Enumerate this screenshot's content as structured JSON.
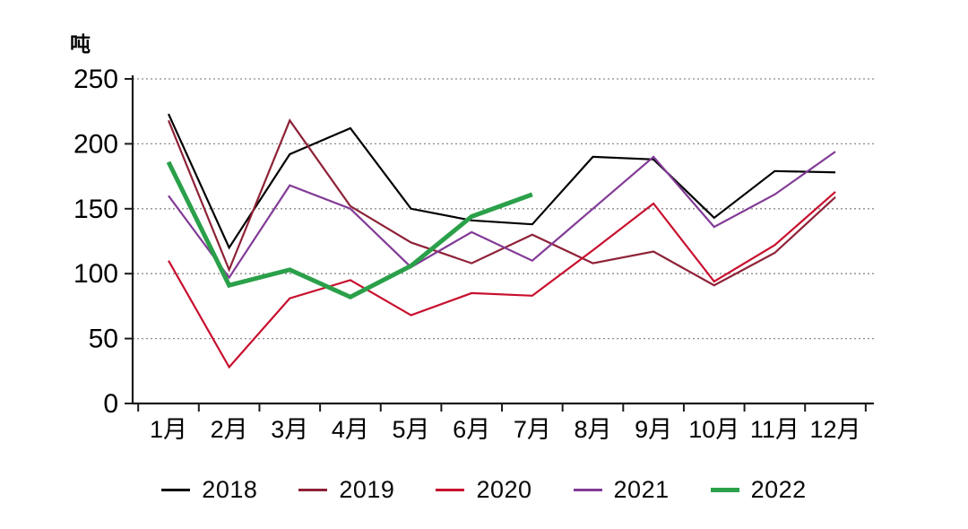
{
  "chart_data": {
    "type": "line",
    "title": "",
    "unit_label": "吨",
    "xlabel": "",
    "ylabel": "吨",
    "categories": [
      "1月",
      "2月",
      "3月",
      "4月",
      "5月",
      "6月",
      "7月",
      "8月",
      "9月",
      "10月",
      "11月",
      "12月"
    ],
    "y_axis": {
      "min": 0,
      "max": 250,
      "tick_step": 50,
      "ticks": [
        0,
        50,
        100,
        150,
        200,
        250
      ]
    },
    "grid": "horizontal-dotted",
    "legend_position": "bottom",
    "series": [
      {
        "name": "2018",
        "color": "#000000",
        "line_width": 2.2,
        "values": [
          223,
          120,
          192,
          212,
          150,
          141,
          138,
          190,
          188,
          143,
          179,
          178
        ]
      },
      {
        "name": "2019",
        "color": "#8e2238",
        "line_width": 2.2,
        "values": [
          218,
          103,
          218,
          152,
          124,
          108,
          130,
          108,
          117,
          91,
          116,
          159
        ]
      },
      {
        "name": "2020",
        "color": "#c8102e",
        "line_width": 2.2,
        "values": [
          110,
          28,
          81,
          95,
          68,
          85,
          83,
          118,
          154,
          94,
          122,
          163
        ]
      },
      {
        "name": "2021",
        "color": "#823b96",
        "line_width": 2.2,
        "values": [
          160,
          97,
          168,
          150,
          105,
          132,
          110,
          150,
          190,
          136,
          161,
          194
        ]
      },
      {
        "name": "2022",
        "color": "#2ba04a",
        "line_width": 5,
        "values": [
          186,
          91,
          103,
          82,
          106,
          144,
          161
        ]
      }
    ],
    "colors": {
      "axis": "#1a1a1a",
      "gridline": "#8c8c8c",
      "text": "#000000"
    }
  }
}
